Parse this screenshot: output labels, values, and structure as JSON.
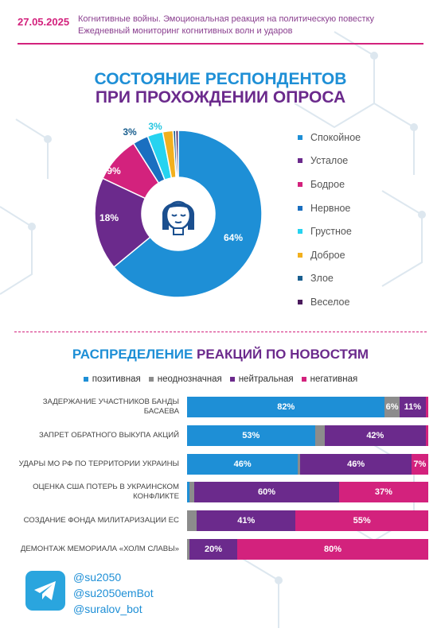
{
  "header": {
    "date": "27.05.2025",
    "line1": "Когнитивные войны. Эмоциональная реакция на политическую повестку",
    "line2": "Ежедневный мониторинг когнитивных волн и ударов"
  },
  "colors": {
    "blue": "#1e8fd6",
    "purple": "#6b2a8c",
    "pink": "#d3227d",
    "gray": "#8c8c8c",
    "cyan": "#26d3f0",
    "yellow": "#f2b01e",
    "darkblue": "#1a5f8f"
  },
  "chart_data": [
    {
      "type": "pie",
      "title": "СОСТОЯНИЕ РЕСПОНДЕНТОВ",
      "subtitle": "ПРИ ПРОХОЖДЕНИИ ОПРОСА",
      "legend_position": "right",
      "categories": [
        "Спокойное",
        "Усталое",
        "Бодрое",
        "Нервное",
        "Грустное",
        "Доброе",
        "Злое",
        "Веселое"
      ],
      "values": [
        64,
        18,
        9,
        3,
        3,
        2,
        0.5,
        0.5
      ],
      "data_labels": [
        "64%",
        "18%",
        "9%",
        "3%",
        "3%",
        "",
        "",
        ""
      ],
      "colors": [
        "#1e8fd6",
        "#6b2a8c",
        "#d3227d",
        "#1a6fc0",
        "#26d3f0",
        "#f2b01e",
        "#1a5f8f",
        "#4a1a5c"
      ]
    },
    {
      "type": "bar",
      "orientation": "horizontal",
      "stacked": true,
      "title": "РАСПРЕДЕЛЕНИЕ РЕАКЦИЙ ПО НОВОСТЯМ",
      "title_blue_part": "РАСПРЕДЕЛЕНИЕ",
      "title_rest": " РЕАКЦИЙ ПО НОВОСТЯМ",
      "legend_position": "top",
      "categories": [
        "Задержание участников банды Басаева",
        "Запрет обратного выкупа акций",
        "Удары МО РФ по территории Украины",
        "Оценка США потерь в украинском конфликте",
        "Создание фонда милитаризации ЕС",
        "Демонтаж мемориала «Холм славы»"
      ],
      "series": [
        {
          "name": "позитивная",
          "color": "#1e8fd6",
          "values": [
            82,
            53,
            46,
            1,
            0,
            0
          ],
          "labels": [
            "82%",
            "53%",
            "46%",
            "",
            "",
            ""
          ]
        },
        {
          "name": "неоднозначная",
          "color": "#8c8c8c",
          "values": [
            6,
            4,
            1,
            2,
            4,
            1
          ],
          "labels": [
            "6%",
            "",
            "",
            "",
            "",
            ""
          ]
        },
        {
          "name": "нейтральная",
          "color": "#6b2a8c",
          "values": [
            11,
            42,
            46,
            60,
            41,
            20
          ],
          "labels": [
            "11%",
            "42%",
            "46%",
            "60%",
            "41%",
            "20%"
          ]
        },
        {
          "name": "негативная",
          "color": "#d3227d",
          "values": [
            1,
            1,
            7,
            37,
            55,
            80
          ],
          "labels": [
            "",
            "",
            "7%",
            "37%",
            "55%",
            "80%"
          ]
        }
      ]
    }
  ],
  "footer": {
    "links": [
      "@su2050",
      "@su2050emBot",
      "@suralov_bot"
    ]
  }
}
